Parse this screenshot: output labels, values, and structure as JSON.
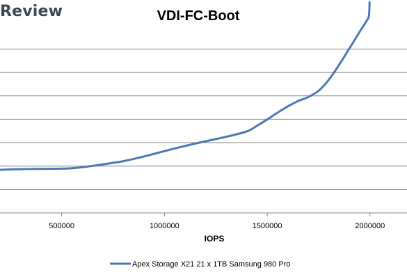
{
  "watermark": "Review",
  "chart_data": {
    "type": "line",
    "title": "VDI-FC-Boot",
    "xlabel": "IOPS",
    "ylabel": "",
    "xlim": [
      200000,
      2180000
    ],
    "ylim": [
      0,
      8.5
    ],
    "x_ticks": [
      500000,
      1000000,
      1500000,
      2000000
    ],
    "x_tick_labels": [
      "500000",
      "1000000",
      "1500000",
      "2000000"
    ],
    "y_gridlines": [
      1,
      2,
      3,
      4,
      5,
      6,
      7,
      8
    ],
    "grid": true,
    "legend_position": "bottom",
    "series": [
      {
        "name": "Apex Storage X21 21 x 1TB Samsung 980 Pro",
        "color": "#4a78b6",
        "x": [
          200000,
          300000,
          400000,
          500000,
          550000,
          600000,
          650000,
          700000,
          750000,
          800000,
          900000,
          1000000,
          1100000,
          1200000,
          1300000,
          1400000,
          1450000,
          1500000,
          1550000,
          1600000,
          1650000,
          1700000,
          1750000,
          1800000,
          1850000,
          1900000,
          1950000,
          1985000,
          1995000,
          1998000
        ],
        "y": [
          1.84,
          1.87,
          1.88,
          1.89,
          1.91,
          1.95,
          2.01,
          2.07,
          2.14,
          2.21,
          2.41,
          2.64,
          2.86,
          3.06,
          3.25,
          3.48,
          3.72,
          3.99,
          4.28,
          4.55,
          4.78,
          4.95,
          5.22,
          5.69,
          6.33,
          7.03,
          7.74,
          8.22,
          8.43,
          9.0
        ]
      }
    ]
  }
}
